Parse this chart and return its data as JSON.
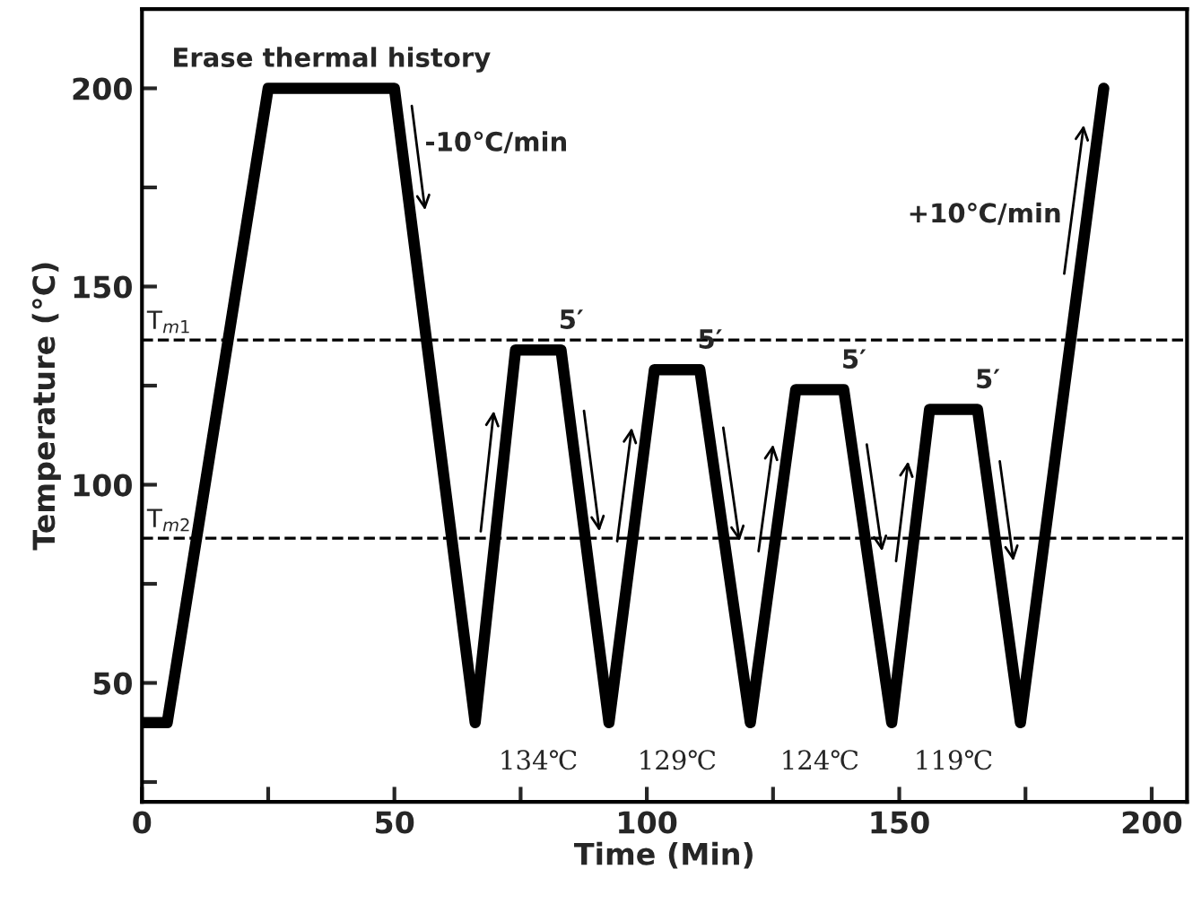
{
  "chart_data": {
    "type": "line",
    "xlabel": "Time (Min)",
    "ylabel": "Temperature (°C)",
    "x": [
      0,
      5,
      25,
      50,
      66,
      74,
      83,
      92.5,
      101.5,
      110.5,
      120.5,
      129.5,
      139,
      148.5,
      156,
      165.5,
      174,
      190.5
    ],
    "series": [
      {
        "color": "#000000",
        "values": [
          40,
          40,
          200,
          200,
          40,
          134,
          134,
          40,
          129,
          129,
          40,
          124,
          124,
          40,
          119,
          119,
          40,
          200
        ]
      }
    ],
    "xlim": [
      0,
      207
    ],
    "ylim": [
      20,
      220
    ],
    "xticks": [
      0,
      {
        "value": 25,
        "label": null
      },
      50,
      {
        "value": 75,
        "label": null
      },
      100,
      {
        "value": 125,
        "label": null
      },
      150,
      {
        "value": 175,
        "label": null
      },
      200
    ],
    "yticks": [
      {
        "value": 25,
        "label": null
      },
      50,
      {
        "value": 75,
        "label": null
      },
      100,
      {
        "value": 125,
        "label": null
      },
      150,
      {
        "value": 175,
        "label": null
      },
      200
    ],
    "ref_lines": [
      {
        "axis": "y",
        "value": 136.5,
        "label": "T$_{m1}$",
        "color": "#000000",
        "line_style": "dashed"
      },
      {
        "axis": "y",
        "value": 86.5,
        "label": "T$_{m2}$",
        "color": "#000000",
        "line_style": "dashed"
      }
    ],
    "annotations": [
      {
        "text": "Erase thermal history",
        "x": 37.5,
        "y": 200
      },
      "-10℃/min",
      "+10℃/min",
      {
        "text": "5′",
        "x": 85,
        "y": 134
      },
      {
        "text": "5′",
        "x": 112.5,
        "y": 129
      },
      {
        "text": "5′",
        "x": 141,
        "y": 124
      },
      {
        "text": "5′",
        "x": 167.5,
        "y": 119
      },
      "134℃",
      "129℃",
      "124℃",
      "119℃"
    ],
    "grid": false,
    "legend": false,
    "line_style": "solid",
    "marker": "none"
  }
}
